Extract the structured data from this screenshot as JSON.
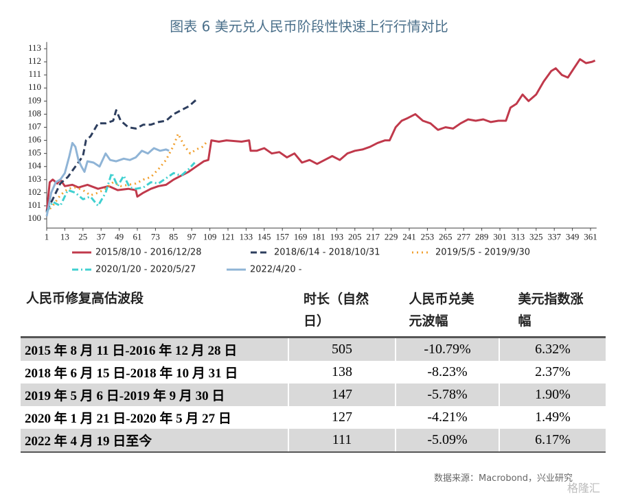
{
  "chart_data": {
    "type": "line",
    "title": "图表 6 美元兑人民币阶段性快速上行行情对比",
    "xlim": [
      1,
      365
    ],
    "ylim": [
      99.3,
      113.3
    ],
    "xticks": [
      1,
      13,
      25,
      37,
      49,
      61,
      73,
      85,
      97,
      109,
      121,
      133,
      145,
      157,
      169,
      181,
      193,
      205,
      217,
      229,
      241,
      253,
      265,
      277,
      289,
      301,
      313,
      325,
      337,
      349,
      361
    ],
    "yticks": [
      100,
      101,
      102,
      103,
      104,
      105,
      106,
      107,
      108,
      109,
      110,
      111,
      112,
      113
    ],
    "grid": false,
    "legend": "bottom",
    "series": [
      {
        "name": "2015/8/10 - 2016/12/28",
        "color": "#c0394b",
        "dash": "solid",
        "x": [
          1,
          3,
          5,
          8,
          10,
          13,
          18,
          22,
          28,
          35,
          42,
          48,
          55,
          60,
          61,
          65,
          70,
          75,
          80,
          85,
          90,
          95,
          100,
          105,
          108,
          110,
          115,
          120,
          130,
          135,
          136,
          140,
          145,
          150,
          155,
          160,
          165,
          170,
          175,
          180,
          185,
          190,
          195,
          200,
          205,
          210,
          215,
          220,
          225,
          228,
          232,
          236,
          240,
          245,
          250,
          255,
          260,
          265,
          270,
          275,
          280,
          285,
          290,
          295,
          300,
          305,
          308,
          312,
          316,
          320,
          325,
          330,
          335,
          338,
          342,
          346,
          350,
          354,
          358,
          362,
          364
        ],
        "values": [
          100.5,
          102.8,
          103,
          102.7,
          103,
          102.5,
          102.6,
          102.4,
          102.6,
          102.3,
          102.5,
          102.2,
          102.3,
          102.2,
          101.7,
          102,
          102.3,
          102.5,
          102.6,
          103,
          103.3,
          103.6,
          104,
          104.4,
          104.5,
          106,
          105.9,
          106,
          105.9,
          106,
          105.2,
          105.2,
          105.4,
          105,
          105.1,
          104.7,
          105,
          104.3,
          104.5,
          104.2,
          104.5,
          104.8,
          104.5,
          105,
          105.2,
          105.3,
          105.5,
          105.8,
          106,
          106,
          107,
          107.5,
          107.7,
          108,
          107.5,
          107.3,
          106.8,
          107,
          106.9,
          107.3,
          107.6,
          107.5,
          107.6,
          107.4,
          107.5,
          107.5,
          108.5,
          108.8,
          109.5,
          109,
          109.5,
          110.5,
          111.3,
          111.5,
          111,
          110.8,
          111.5,
          112.2,
          111.9,
          112,
          112.1
        ]
      },
      {
        "name": "2018/6/14 - 2018/10/31",
        "color": "#2d3e5e",
        "dash": "dash",
        "x": [
          1,
          5,
          10,
          15,
          20,
          25,
          27,
          30,
          35,
          40,
          45,
          47,
          50,
          55,
          60,
          65,
          70,
          75,
          80,
          85,
          90,
          95,
          100
        ],
        "values": [
          100.6,
          101.5,
          102.7,
          103.2,
          104,
          104.8,
          106,
          106.3,
          107.3,
          107.3,
          107.5,
          108.3,
          107.5,
          107,
          106.9,
          107.2,
          107.2,
          107.4,
          107.5,
          108,
          108.3,
          108.6,
          109.1
        ]
      },
      {
        "name": "2019/5/5 - 2019/9/30",
        "color": "#f0a030",
        "dash": "dot",
        "x": [
          1,
          5,
          10,
          15,
          20,
          25,
          30,
          35,
          40,
          45,
          50,
          55,
          60,
          65,
          70,
          75,
          80,
          85,
          88,
          92,
          96,
          100,
          104,
          108
        ],
        "values": [
          100.5,
          101,
          101.8,
          102.3,
          102.4,
          102.2,
          101.8,
          102,
          102.3,
          102.8,
          102.5,
          102.6,
          102.7,
          103,
          103.2,
          103.8,
          104.5,
          105.6,
          106.5,
          105.6,
          105,
          105.3,
          105.5,
          106
        ]
      },
      {
        "name": "2020/1/20 - 2020/5/27",
        "color": "#40d0d0",
        "dash": "dashdot",
        "x": [
          1,
          5,
          10,
          15,
          20,
          25,
          30,
          35,
          40,
          44,
          48,
          52,
          56,
          60,
          65,
          70,
          75,
          80,
          85,
          90,
          95,
          99
        ],
        "values": [
          100.5,
          101.3,
          101,
          102.2,
          102,
          101.5,
          101.7,
          101,
          102,
          103.5,
          102.5,
          103.3,
          102.4,
          102.3,
          102.4,
          102.8,
          102.7,
          103.1,
          103.5,
          103.3,
          103.8,
          104.3
        ]
      },
      {
        "name": "2022/4/20 -",
        "color": "#8fb4d6",
        "dash": "solid",
        "x": [
          1,
          4,
          7,
          10,
          13,
          16,
          18,
          20,
          22,
          24,
          26,
          28,
          32,
          36,
          40,
          43,
          47,
          52,
          56,
          60,
          64,
          68,
          72,
          76,
          80,
          82
        ],
        "values": [
          100.2,
          102,
          102.8,
          103,
          103.5,
          104.8,
          105.8,
          105.5,
          104.5,
          104,
          103.6,
          104.4,
          104.3,
          104,
          105,
          104.5,
          104.4,
          104.6,
          104.5,
          104.7,
          105.2,
          105,
          105.4,
          105.2,
          105.3,
          105.2
        ]
      }
    ]
  },
  "table": {
    "header": [
      "人民币修复高估波段",
      "时长（自然日）",
      "人民币兑美元波幅",
      "美元指数涨幅"
    ],
    "rows": [
      [
        "2015 年 8 月 11 日-2016 年 12 月 28 日",
        "505",
        "-10.79%",
        "6.32%"
      ],
      [
        "2018 年 6 月 15 日-2018 年 10 月 31 日",
        "138",
        "-8.23%",
        "2.37%"
      ],
      [
        "2019 年 5 月 6 日-2019 年 9 月 30 日",
        "147",
        "-5.78%",
        "1.90%"
      ],
      [
        "2020 年 1 月 21 日-2020 年 5 月 27 日",
        "127",
        "-4.21%",
        "1.49%"
      ],
      [
        "2022 年 4 月 19 日至今",
        "111",
        "-5.09%",
        "6.17%"
      ]
    ]
  },
  "source": "数据来源：Macrobond，兴业研究",
  "watermark": "格隆汇"
}
